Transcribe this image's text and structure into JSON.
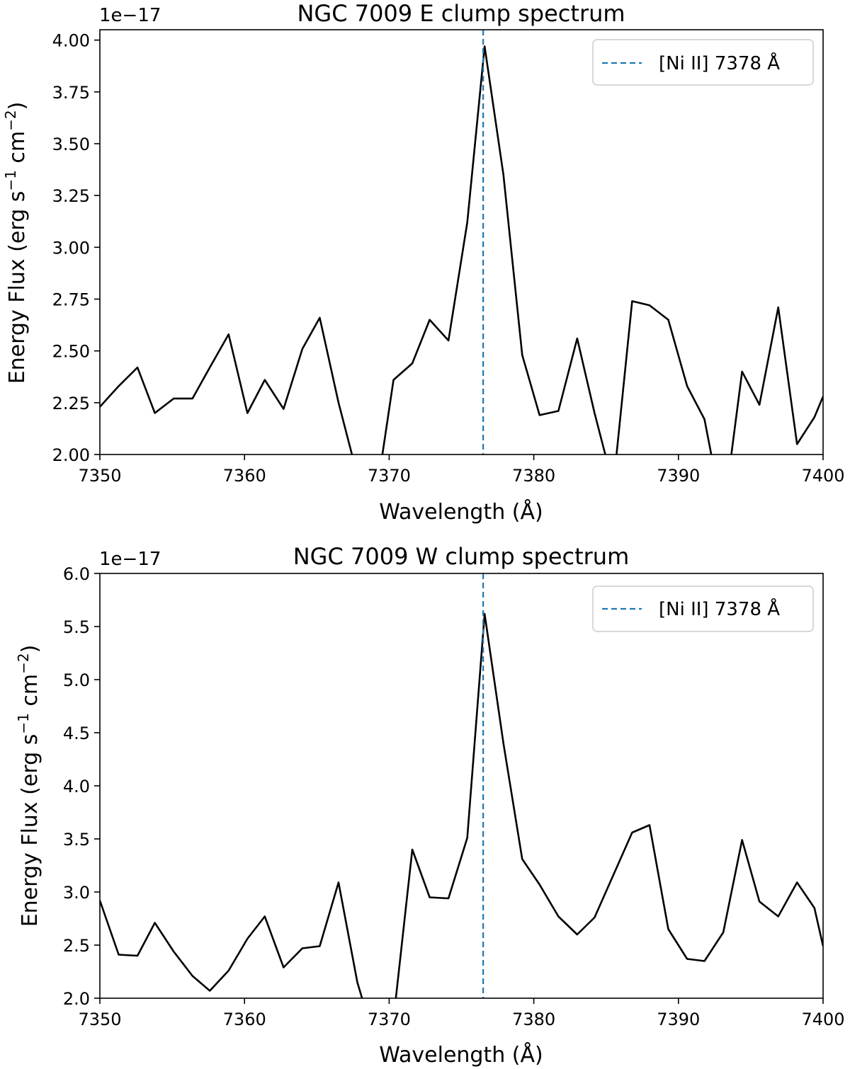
{
  "chart_data": [
    {
      "type": "line",
      "title": "NGC 7009 E clump spectrum",
      "xlabel": "Wavelength (Å)",
      "ylabel_main": "Energy Flux (erg s",
      "ylabel_sup1": "−1",
      "ylabel_mid": " cm",
      "ylabel_sup2": "−2",
      "ylabel_end": ")",
      "offset_text": "1e−17",
      "xlim": [
        7350,
        7400
      ],
      "ylim": [
        2.0,
        4.05
      ],
      "xticks": [
        7350,
        7360,
        7370,
        7380,
        7390,
        7400
      ],
      "yticks": [
        2.0,
        2.25,
        2.5,
        2.75,
        3.0,
        3.25,
        3.5,
        3.75,
        4.0
      ],
      "ytick_labels": [
        "2.00",
        "2.25",
        "2.50",
        "2.75",
        "3.00",
        "3.25",
        "3.50",
        "3.75",
        "4.00"
      ],
      "grid": false,
      "legend_position": "top-right",
      "vline": {
        "x": 7376.5,
        "label": "[Ni II] 7378 Å",
        "color": "#1f77b4",
        "style": "dashed"
      },
      "series": [
        {
          "color": "#000000",
          "x": [
            7350.0,
            7351.3,
            7352.6,
            7353.8,
            7355.1,
            7356.4,
            7357.6,
            7358.9,
            7360.2,
            7361.4,
            7362.7,
            7364.0,
            7365.2,
            7366.5,
            7367.8,
            7369.0,
            7370.3,
            7371.6,
            7372.8,
            7374.1,
            7375.4,
            7376.6,
            7377.9,
            7379.2,
            7380.4,
            7381.7,
            7383.0,
            7384.2,
            7385.5,
            7386.8,
            7388.0,
            7389.3,
            7390.6,
            7391.8,
            7393.1,
            7394.4,
            7395.6,
            7396.9,
            7398.2,
            7399.4,
            7400.0
          ],
          "y": [
            2.23,
            2.33,
            2.42,
            2.2,
            2.27,
            2.27,
            2.42,
            2.58,
            2.2,
            2.36,
            2.22,
            2.51,
            2.66,
            2.25,
            1.9,
            1.75,
            2.36,
            2.44,
            2.65,
            2.55,
            3.12,
            3.97,
            3.35,
            2.48,
            2.19,
            2.21,
            2.56,
            2.2,
            1.85,
            2.74,
            2.72,
            2.65,
            2.33,
            2.17,
            1.7,
            2.4,
            2.24,
            2.71,
            2.05,
            2.18,
            2.28
          ]
        }
      ]
    },
    {
      "type": "line",
      "title": "NGC 7009 W clump spectrum",
      "xlabel": "Wavelength (Å)",
      "ylabel_main": "Energy Flux (erg s",
      "ylabel_sup1": "−1",
      "ylabel_mid": " cm",
      "ylabel_sup2": "−2",
      "ylabel_end": ")",
      "offset_text": "1e−17",
      "xlim": [
        7350,
        7400
      ],
      "ylim": [
        2.0,
        6.0
      ],
      "xticks": [
        7350,
        7360,
        7370,
        7380,
        7390,
        7400
      ],
      "yticks": [
        2.0,
        2.5,
        3.0,
        3.5,
        4.0,
        4.5,
        5.0,
        5.5,
        6.0
      ],
      "ytick_labels": [
        "2.0",
        "2.5",
        "3.0",
        "3.5",
        "4.0",
        "4.5",
        "5.0",
        "5.5",
        "6.0"
      ],
      "grid": false,
      "legend_position": "top-right",
      "vline": {
        "x": 7376.5,
        "label": "[Ni II] 7378 Å",
        "color": "#1f77b4",
        "style": "dashed"
      },
      "series": [
        {
          "color": "#000000",
          "x": [
            7350.0,
            7351.3,
            7352.6,
            7353.8,
            7355.1,
            7356.4,
            7357.6,
            7358.9,
            7360.2,
            7361.4,
            7362.7,
            7364.0,
            7365.2,
            7366.5,
            7367.8,
            7369.0,
            7370.3,
            7371.6,
            7372.8,
            7374.1,
            7375.4,
            7376.6,
            7377.9,
            7379.2,
            7380.4,
            7381.7,
            7383.0,
            7384.2,
            7385.5,
            7386.8,
            7388.0,
            7389.3,
            7390.6,
            7391.8,
            7393.1,
            7394.4,
            7395.6,
            7396.9,
            7398.2,
            7399.4,
            7400.0
          ],
          "y": [
            2.92,
            2.41,
            2.4,
            2.71,
            2.44,
            2.21,
            2.07,
            2.26,
            2.56,
            2.77,
            2.29,
            2.47,
            2.49,
            3.09,
            2.15,
            1.6,
            1.8,
            3.4,
            2.95,
            2.94,
            3.51,
            5.62,
            4.4,
            3.31,
            3.07,
            2.77,
            2.6,
            2.76,
            3.16,
            3.56,
            3.63,
            2.65,
            2.37,
            2.35,
            2.62,
            3.49,
            2.91,
            2.77,
            3.09,
            2.85,
            2.49
          ]
        }
      ]
    }
  ]
}
